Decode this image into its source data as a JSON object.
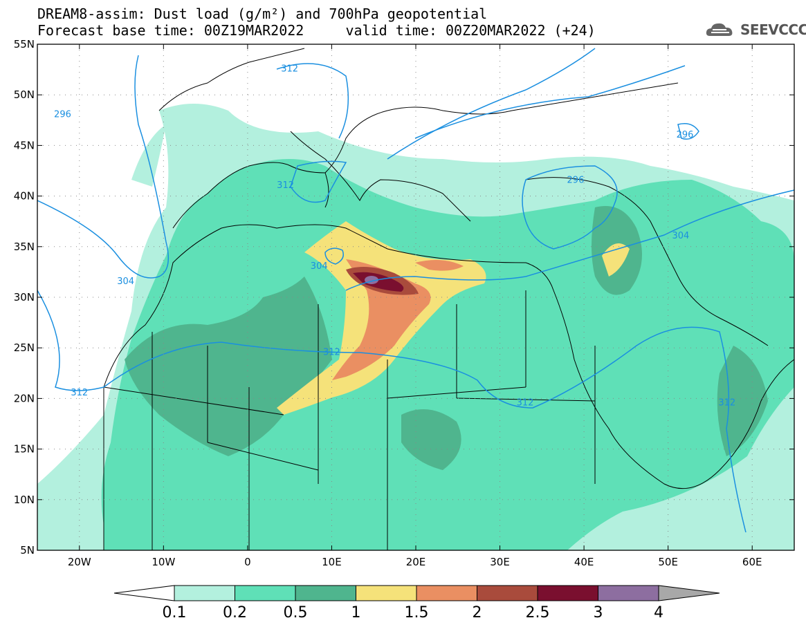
{
  "title": {
    "line1": "DREAM8-assim: Dust load (g/m²) and 700hPa geopotential",
    "line2": "Forecast base time: 00Z19MAR2022     valid time: 00Z20MAR2022 (+24)"
  },
  "logo": {
    "text": "SEEVCCC",
    "icon": "cloud-icon"
  },
  "map": {
    "lon_range": [
      -25,
      65
    ],
    "lat_range": [
      5,
      55
    ],
    "lon_ticks": [
      {
        "value": -20,
        "label": "20W"
      },
      {
        "value": -10,
        "label": "10W"
      },
      {
        "value": 0,
        "label": "0"
      },
      {
        "value": 10,
        "label": "10E"
      },
      {
        "value": 20,
        "label": "20E"
      },
      {
        "value": 30,
        "label": "30E"
      },
      {
        "value": 40,
        "label": "40E"
      },
      {
        "value": 50,
        "label": "50E"
      },
      {
        "value": 60,
        "label": "60E"
      }
    ],
    "lat_ticks": [
      {
        "value": 55,
        "label": "55N"
      },
      {
        "value": 50,
        "label": "50N"
      },
      {
        "value": 45,
        "label": "45N"
      },
      {
        "value": 40,
        "label": "40N"
      },
      {
        "value": 35,
        "label": "35N"
      },
      {
        "value": 30,
        "label": "30N"
      },
      {
        "value": 25,
        "label": "25N"
      },
      {
        "value": 20,
        "label": "20N"
      },
      {
        "value": 15,
        "label": "15N"
      },
      {
        "value": 10,
        "label": "10N"
      },
      {
        "value": 5,
        "label": "5N"
      }
    ],
    "contour_labels": [
      {
        "text": "296",
        "lon": -22,
        "lat": 48
      },
      {
        "text": "296",
        "lon": 39,
        "lat": 41.5
      },
      {
        "text": "296",
        "lon": 52,
        "lat": 46
      },
      {
        "text": "304",
        "lon": -14.5,
        "lat": 31.5
      },
      {
        "text": "304",
        "lon": 8.5,
        "lat": 33
      },
      {
        "text": "304",
        "lon": 51.5,
        "lat": 36
      },
      {
        "text": "312",
        "lon": 4.5,
        "lat": 41
      },
      {
        "text": "312",
        "lon": 5,
        "lat": 52.5
      },
      {
        "text": "312",
        "lon": 10,
        "lat": 24.5
      },
      {
        "text": "312",
        "lon": -20,
        "lat": 20.5
      },
      {
        "text": "312",
        "lon": 33,
        "lat": 19.5
      },
      {
        "text": "312",
        "lon": 57,
        "lat": 19.5
      }
    ],
    "contour_color": "#1a8fe0"
  },
  "colorbar": {
    "labels": [
      "0.1",
      "0.2",
      "0.5",
      "1",
      "1.5",
      "2",
      "2.5",
      "3",
      "4"
    ],
    "colors": [
      "#ffffff",
      "#b3f0de",
      "#5fe0b7",
      "#4fb58e",
      "#f5e27a",
      "#ea8f62",
      "#a94b3c",
      "#7a0f2f",
      "#8d6ea0",
      "#a8a8a8"
    ]
  }
}
